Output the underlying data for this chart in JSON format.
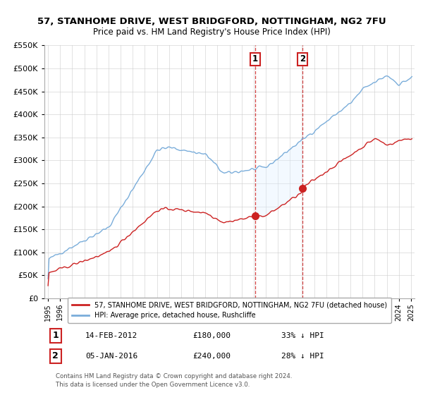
{
  "title": "57, STANHOME DRIVE, WEST BRIDGFORD, NOTTINGHAM, NG2 7FU",
  "subtitle": "Price paid vs. HM Land Registry's House Price Index (HPI)",
  "legend_line1": "57, STANHOME DRIVE, WEST BRIDGFORD, NOTTINGHAM, NG2 7FU (detached house)",
  "legend_line2": "HPI: Average price, detached house, Rushcliffe",
  "transaction1_date": "14-FEB-2012",
  "transaction1_price": "£180,000",
  "transaction1_desc": "33% ↓ HPI",
  "transaction1_year": 2012.12,
  "transaction1_value": 180000,
  "transaction2_date": "05-JAN-2016",
  "transaction2_price": "£240,000",
  "transaction2_desc": "28% ↓ HPI",
  "transaction2_year": 2016.03,
  "transaction2_value": 240000,
  "footer_line1": "Contains HM Land Registry data © Crown copyright and database right 2024.",
  "footer_line2": "This data is licensed under the Open Government Licence v3.0.",
  "hpi_color": "#7aadda",
  "price_color": "#cc2222",
  "vline_color": "#cc2222",
  "shade_color": "#ddeeff",
  "background_color": "#ffffff",
  "ylim": [
    0,
    550000
  ],
  "xlim_start": 1994.7,
  "xlim_end": 2025.3
}
